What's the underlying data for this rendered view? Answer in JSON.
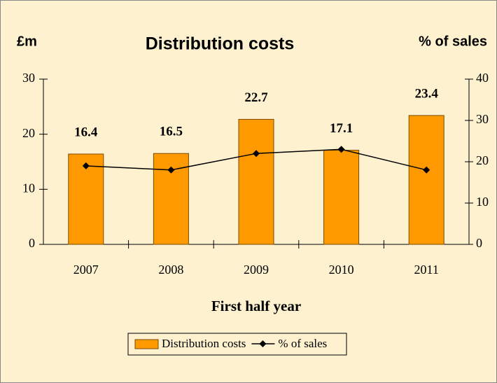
{
  "chart_data": {
    "type": "bar",
    "title": "Distribution costs",
    "ylabel": "£m",
    "y2label": "% of sales",
    "xlabel": "First half year",
    "categories": [
      "2007",
      "2008",
      "2009",
      "2010",
      "2011"
    ],
    "series": [
      {
        "name": "Distribution costs",
        "type": "bar",
        "color": "#FF9900",
        "axis": "y",
        "values": [
          16.4,
          16.5,
          22.7,
          17.1,
          23.4
        ]
      },
      {
        "name": "% of sales",
        "type": "line",
        "color": "#000000",
        "axis": "y2",
        "values": [
          19,
          18,
          22,
          23,
          18
        ]
      }
    ],
    "ylim": [
      0,
      30
    ],
    "yticks": [
      0,
      10,
      20,
      30
    ],
    "y2lim": [
      0,
      40
    ],
    "y2ticks": [
      0,
      10,
      20,
      30,
      40
    ],
    "legend": "bottom",
    "background": "#FDF1CF"
  }
}
